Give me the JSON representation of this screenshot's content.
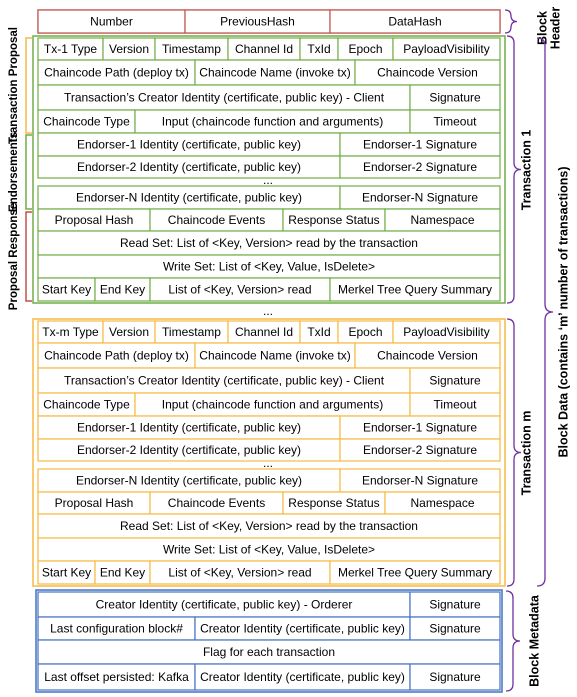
{
  "block_header": {
    "label_lines": [
      "Block",
      "Header"
    ],
    "fields": [
      "Number",
      "PreviousHash",
      "DataHash"
    ]
  },
  "section_labels": {
    "proposal": "Transaction Proposal",
    "endorsements": "Endorsements",
    "response": "Proposal Response"
  },
  "transactions": [
    {
      "label": "Transaction 1",
      "endorser_ellipsis": "...",
      "rows": [
        [
          "Tx-1 Type",
          "Version",
          "Timestamp",
          "Channel Id",
          "TxId",
          "Epoch",
          "PayloadVisibility"
        ],
        [
          "Chaincode Path (deploy tx)",
          "Chaincode Name (invoke tx)",
          "Chaincode Version"
        ],
        [
          "Transaction’s Creator Identity (certificate, public key) - Client",
          "Signature"
        ],
        [
          "Chaincode Type",
          "Input (chaincode function and arguments)",
          "Timeout"
        ],
        [
          "Endorser-1 Identity (certificate, public key)",
          "Endorser-1 Signature"
        ],
        [
          "Endorser-2 Identity (certificate, public key)",
          "Endorser-2 Signature"
        ],
        [
          "Endorser-N Identity (certificate, public key)",
          "Endorser-N Signature"
        ],
        [
          "Proposal Hash",
          "Chaincode Events",
          "Response Status",
          "Namespace"
        ],
        [
          "Read Set: List of <Key, Version> read by the transaction"
        ],
        [
          "Write Set: List of <Key, Value, IsDelete>"
        ],
        [
          "Start Key",
          "End Key",
          "List of <Key, Version> read",
          "Merkel Tree Query Summary"
        ]
      ]
    },
    {
      "label": "Transaction m",
      "endorser_ellipsis": "...",
      "rows": [
        [
          "Tx-m Type",
          "Version",
          "Timestamp",
          "Channel Id",
          "TxId",
          "Epoch",
          "PayloadVisibility"
        ],
        [
          "Chaincode Path (deploy tx)",
          "Chaincode Name (invoke tx)",
          "Chaincode Version"
        ],
        [
          "Transaction’s Creator Identity (certificate, public key) - Client",
          "Signature"
        ],
        [
          "Chaincode Type",
          "Input (chaincode function and arguments)",
          "Timeout"
        ],
        [
          "Endorser-1 Identity (certificate, public key)",
          "Endorser-1 Signature"
        ],
        [
          "Endorser-2 Identity (certificate, public key)",
          "Endorser-2 Signature"
        ],
        [
          "Endorser-N Identity (certificate, public key)",
          "Endorser-N Signature"
        ],
        [
          "Proposal Hash",
          "Chaincode Events",
          "Response Status",
          "Namespace"
        ],
        [
          "Read Set: List of <Key, Version> read by the transaction"
        ],
        [
          "Write Set: List of <Key, Value, IsDelete>"
        ],
        [
          "Start Key",
          "End Key",
          "List of <Key, Version> read",
          "Merkel Tree Query Summary"
        ]
      ]
    }
  ],
  "between_ellipsis": "...",
  "block_data_label": "Block Data (contains ‘m’ number of transactions)",
  "block_metadata": {
    "label": "Block Metadata",
    "rows": [
      [
        "Creator Identity (certificate, public key) - Orderer",
        "Signature"
      ],
      [
        "Last configuration block#",
        "Creator Identity (certificate, public key)",
        "Signature"
      ],
      [
        "Flag for each transaction"
      ],
      [
        "Last offset persisted: Kafka",
        "Creator Identity (certificate, public key)",
        "Signature"
      ]
    ]
  }
}
